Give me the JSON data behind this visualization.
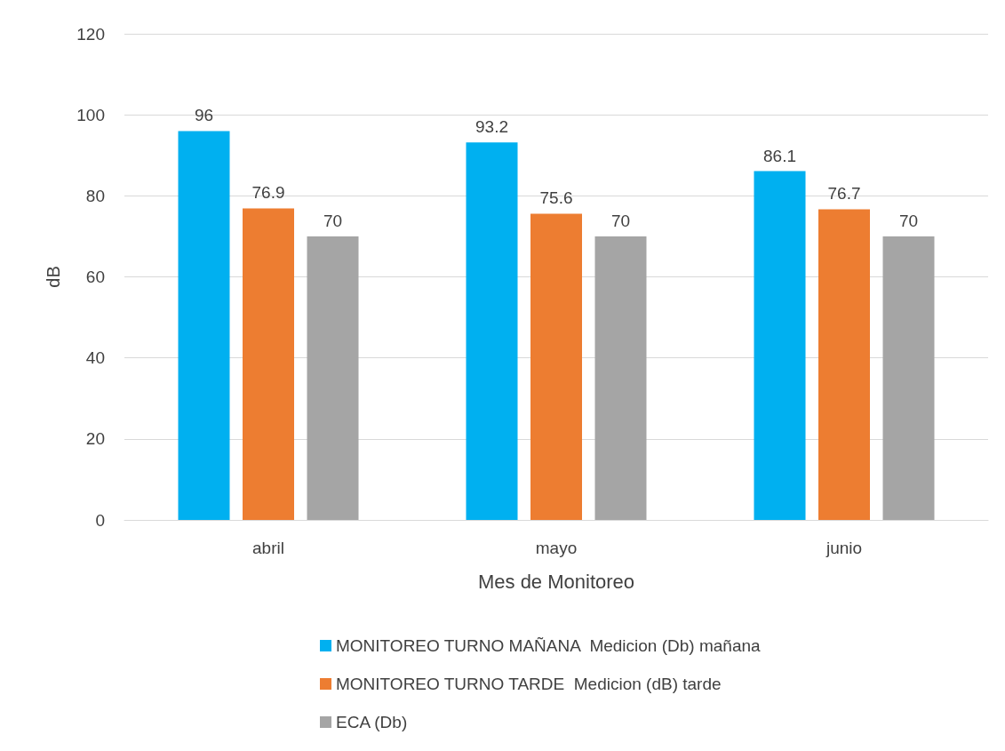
{
  "chart_data": {
    "type": "bar",
    "xlabel": "Mes de Monitoreo",
    "ylabel": "dB",
    "categories": [
      "abril",
      "mayo",
      "junio"
    ],
    "series": [
      {
        "name": "MONITOREO TURNO MAÑANA  Medicion (Db) mañana",
        "color": "#00b0f0",
        "values": [
          96,
          93.2,
          86.1
        ]
      },
      {
        "name": "MONITOREO TURNO TARDE  Medicion (dB) tarde",
        "color": "#ed7d31",
        "values": [
          76.9,
          75.6,
          76.7
        ]
      },
      {
        "name": "ECA (Db)",
        "color": "#a5a5a5",
        "values": [
          70,
          70,
          70
        ]
      }
    ],
    "ylim": [
      0,
      120
    ],
    "yticks": [
      0,
      20,
      40,
      60,
      80,
      100,
      120
    ],
    "grid": "y",
    "legend": "bottom",
    "data_labels": true
  }
}
